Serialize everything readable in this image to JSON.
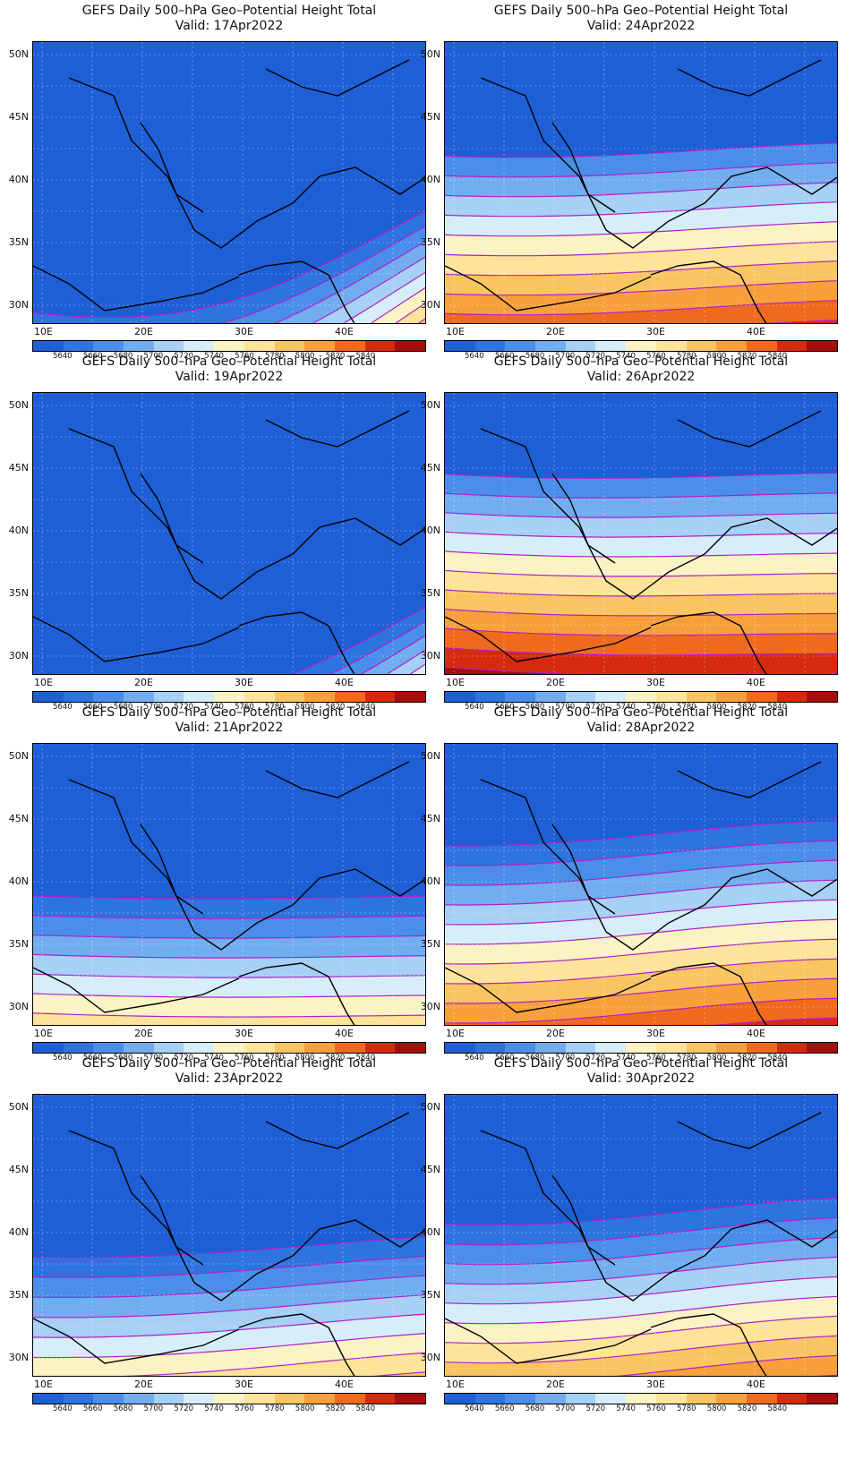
{
  "title_text": "GEFS Daily 500–hPa Geo–Potential Height Total",
  "panels": [
    {
      "valid": "Valid: 17Apr2022"
    },
    {
      "valid": "Valid: 24Apr2022"
    },
    {
      "valid": "Valid: 19Apr2022"
    },
    {
      "valid": "Valid: 26Apr2022"
    },
    {
      "valid": "Valid: 21Apr2022"
    },
    {
      "valid": "Valid: 28Apr2022"
    },
    {
      "valid": "Valid: 23Apr2022"
    },
    {
      "valid": "Valid: 30Apr2022"
    }
  ],
  "lat_labels": [
    "50N",
    "45N",
    "40N",
    "35N",
    "30N"
  ],
  "lon_labels": [
    "10E",
    "20E",
    "30E",
    "40E"
  ],
  "colorbar": {
    "levels": [
      "5640",
      "5660",
      "5680",
      "5700",
      "5720",
      "5740",
      "5760",
      "5780",
      "5800",
      "5820",
      "5840"
    ],
    "colors": [
      "#1e5fd6",
      "#2e74e0",
      "#4a8eea",
      "#72adf0",
      "#a6d0f5",
      "#d6eefa",
      "#fbf3c4",
      "#fde49a",
      "#f9c563",
      "#f7a03b",
      "#f06a1e",
      "#d62a0e",
      "#a60d0d"
    ]
  },
  "contour_color": "#b020c8"
}
